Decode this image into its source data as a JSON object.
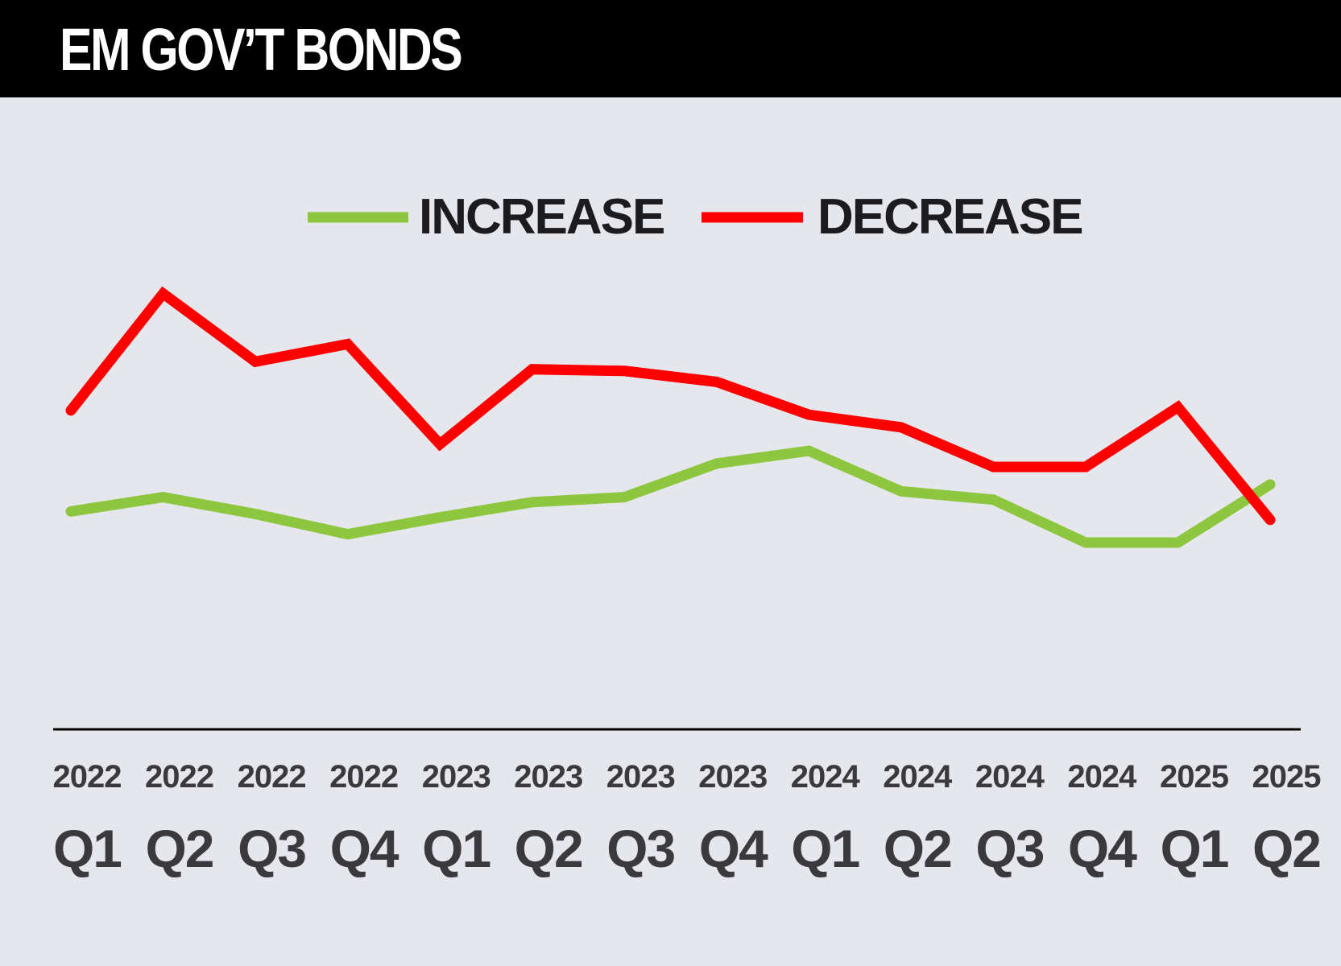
{
  "header": {
    "title": "EM GOV’T BONDS"
  },
  "colors": {
    "increase": "#8dc63f",
    "decrease": "#ff0000",
    "axis": "#000000",
    "background": "#e6e7ec",
    "header": "#000000"
  },
  "chart_data": {
    "type": "line",
    "title": "EM GOV’T BONDS",
    "legend_position": "top-center",
    "grid": false,
    "categories": [
      {
        "year": "2022",
        "quarter": "Q1"
      },
      {
        "year": "2022",
        "quarter": "Q2"
      },
      {
        "year": "2022",
        "quarter": "Q3"
      },
      {
        "year": "2022",
        "quarter": "Q4"
      },
      {
        "year": "2023",
        "quarter": "Q1"
      },
      {
        "year": "2023",
        "quarter": "Q2"
      },
      {
        "year": "2023",
        "quarter": "Q3"
      },
      {
        "year": "2023",
        "quarter": "Q4"
      },
      {
        "year": "2024",
        "quarter": "Q1"
      },
      {
        "year": "2024",
        "quarter": "Q2"
      },
      {
        "year": "2024",
        "quarter": "Q3"
      },
      {
        "year": "2024",
        "quarter": "Q4"
      },
      {
        "year": "2025",
        "quarter": "Q1"
      },
      {
        "year": "2025",
        "quarter": "Q2"
      }
    ],
    "series": [
      {
        "name": "INCREASE",
        "color": "#8dc63f",
        "values": [
          25.9,
          27.6,
          25.6,
          23.2,
          25.2,
          27.0,
          27.6,
          31.6,
          33.1,
          28.3,
          27.3,
          22.2,
          22.2,
          29.1
        ]
      },
      {
        "name": "DECREASE",
        "color": "#ff0000",
        "values": [
          37.9,
          51.8,
          43.7,
          45.8,
          33.9,
          42.8,
          42.6,
          41.3,
          37.4,
          35.9,
          31.2,
          31.2,
          38.3,
          24.9
        ]
      }
    ],
    "ylim": [
      0,
      80
    ]
  }
}
